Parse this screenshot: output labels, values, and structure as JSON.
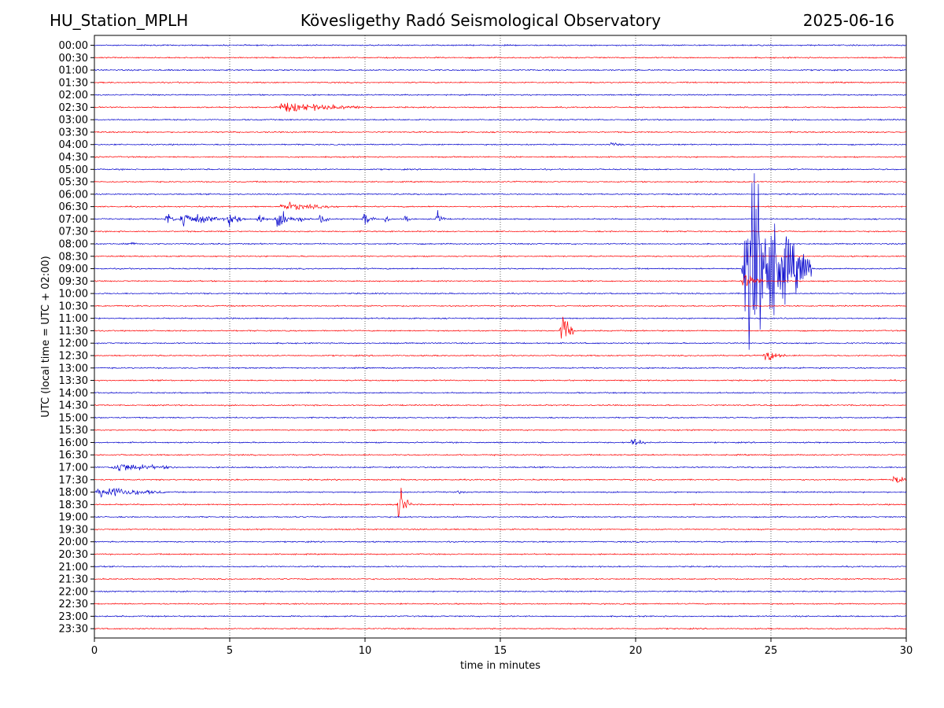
{
  "header": {
    "station": "HU_Station_MPLH",
    "title": "Kövesligethy Radó Seismological Observatory",
    "date": "2025-06-16"
  },
  "chart_data": {
    "type": "line",
    "subtype": "helicorder",
    "xlabel": "time in minutes",
    "ylabel": "UTC (local time = UTC + 02:00)",
    "xlim": [
      0,
      30
    ],
    "x_ticks": [
      0,
      5,
      10,
      15,
      20,
      25,
      30
    ],
    "grid": "vertical dotted lines at x ticks",
    "colors": [
      "#0000cc",
      "#ff0000"
    ],
    "rows": [
      "00:00",
      "00:30",
      "01:00",
      "01:30",
      "02:00",
      "02:30",
      "03:00",
      "03:30",
      "04:00",
      "04:30",
      "05:00",
      "05:30",
      "06:00",
      "06:30",
      "07:00",
      "07:30",
      "08:00",
      "08:30",
      "09:00",
      "09:30",
      "10:00",
      "10:30",
      "11:00",
      "11:30",
      "12:00",
      "12:30",
      "13:00",
      "13:30",
      "14:00",
      "14:30",
      "15:00",
      "15:30",
      "16:00",
      "16:30",
      "17:00",
      "17:30",
      "18:00",
      "18:30",
      "19:00",
      "19:30",
      "20:00",
      "20:30",
      "21:00",
      "21:30",
      "22:00",
      "22:30",
      "23:00",
      "23:30"
    ],
    "events": [
      {
        "row": "02:30",
        "start": 6.6,
        "end": 10.3,
        "amp": 0.55
      },
      {
        "row": "04:00",
        "start": 19.0,
        "end": 19.5,
        "amp": 0.3
      },
      {
        "row": "06:30",
        "start": 6.8,
        "end": 9.0,
        "amp": 0.45
      },
      {
        "row": "07:00",
        "start": 2.6,
        "end": 3.0,
        "amp": 0.9
      },
      {
        "row": "07:00",
        "start": 3.1,
        "end": 4.8,
        "amp": 0.9
      },
      {
        "row": "07:00",
        "start": 4.9,
        "end": 5.6,
        "amp": 0.9
      },
      {
        "row": "07:00",
        "start": 6.0,
        "end": 6.4,
        "amp": 0.9
      },
      {
        "row": "07:00",
        "start": 6.6,
        "end": 8.0,
        "amp": 0.9
      },
      {
        "row": "07:00",
        "start": 8.3,
        "end": 8.7,
        "amp": 0.9
      },
      {
        "row": "07:00",
        "start": 9.9,
        "end": 10.4,
        "amp": 0.8
      },
      {
        "row": "07:00",
        "start": 10.7,
        "end": 11.0,
        "amp": 0.8
      },
      {
        "row": "07:00",
        "start": 11.4,
        "end": 11.7,
        "amp": 0.9
      },
      {
        "row": "07:00",
        "start": 12.6,
        "end": 13.0,
        "amp": 0.9
      },
      {
        "row": "08:00",
        "start": 1.2,
        "end": 1.6,
        "amp": 0.3
      },
      {
        "row": "09:00",
        "start": 23.9,
        "end": 26.5,
        "amp": 12.0
      },
      {
        "row": "09:30",
        "start": 23.9,
        "end": 24.8,
        "amp": 0.9
      },
      {
        "row": "11:30",
        "start": 17.2,
        "end": 17.7,
        "amp": 3.0
      },
      {
        "row": "12:30",
        "start": 24.7,
        "end": 25.6,
        "amp": 0.7
      },
      {
        "row": "16:00",
        "start": 19.8,
        "end": 20.4,
        "amp": 0.6
      },
      {
        "row": "17:00",
        "start": 0.6,
        "end": 3.0,
        "amp": 0.55
      },
      {
        "row": "17:30",
        "start": 29.5,
        "end": 30.0,
        "amp": 0.8
      },
      {
        "row": "18:00",
        "start": 0.0,
        "end": 2.6,
        "amp": 0.7
      },
      {
        "row": "18:00",
        "start": 13.4,
        "end": 13.6,
        "amp": 0.6
      },
      {
        "row": "18:30",
        "start": 11.2,
        "end": 11.7,
        "amp": 2.5
      }
    ]
  }
}
